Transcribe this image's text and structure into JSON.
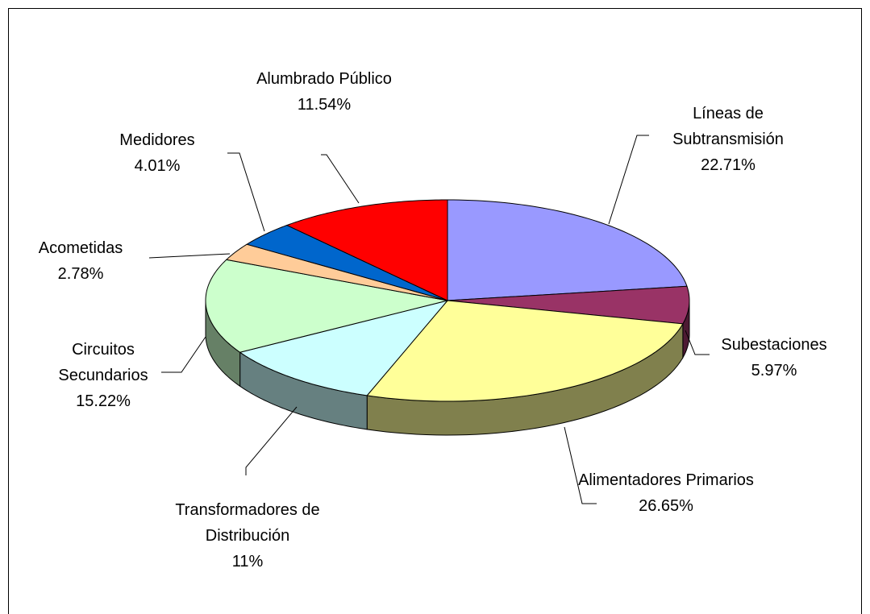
{
  "chart_data": {
    "type": "pie",
    "categories": [
      "Líneas de Subtransmisión",
      "Subestaciones",
      "Alimentadores Primarios",
      "Transformadores de Distribución",
      "Circuitos Secundarios",
      "Acometidas",
      "Medidores",
      "Alumbrado Público"
    ],
    "values": [
      22.71,
      5.97,
      26.65,
      11,
      15.22,
      2.78,
      4.01,
      11.54
    ],
    "value_labels": [
      "22.71%",
      "5.97%",
      "26.65%",
      "11%",
      "15.22%",
      "2.78%",
      "4.01%",
      "11.54%"
    ],
    "colors": [
      "#9999ff",
      "#993366",
      "#ffff99",
      "#ccffff",
      "#ccffcc",
      "#ffcc99",
      "#0066cc",
      "#ff0000"
    ]
  }
}
